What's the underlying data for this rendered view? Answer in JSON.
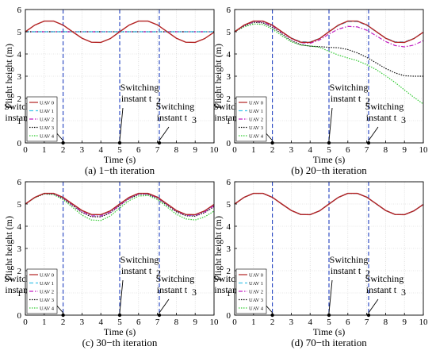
{
  "figure": {
    "colors": {
      "UAV 0": "#b22222",
      "UAV 1": "#3ec3e8",
      "UAV 2": "#c01ec0",
      "UAV 3": "#111111",
      "UAV 4": "#33cc33",
      "switch_line": "#1f3fbf"
    }
  },
  "chart_data": [
    {
      "type": "line",
      "caption": "(a) 1−th iteration",
      "xlabel": "Time (s)",
      "ylabel": "Flight height (m)",
      "xlim": [
        0,
        10
      ],
      "ylim": [
        0,
        6
      ],
      "xticks": [
        "0",
        "1",
        "2",
        "3",
        "4",
        "5",
        "6",
        "7",
        "8",
        "9",
        "10"
      ],
      "yticks": [
        "0",
        "1",
        "2",
        "3",
        "4",
        "5",
        "6"
      ],
      "grid": true,
      "legend": "bottom-left",
      "switch_times": [
        2,
        5,
        7.1
      ],
      "annotations": [
        {
          "line1": "Switching",
          "line2": "instant t",
          "sub": "1",
          "target_x": 2
        },
        {
          "line1": "Switching",
          "line2": "instant t",
          "sub": "2",
          "target_x": 5
        },
        {
          "line1": "Switching",
          "line2": "instant t",
          "sub": "3",
          "target_x": 7.1
        }
      ],
      "x": [
        0,
        0.5,
        1,
        1.5,
        2,
        2.5,
        3,
        3.5,
        4,
        4.5,
        5,
        5.5,
        6,
        6.5,
        7,
        7.5,
        8,
        8.5,
        9,
        9.5,
        10
      ],
      "series": [
        {
          "name": "UAV 0",
          "values": [
            5.0,
            5.3,
            5.48,
            5.48,
            5.3,
            5.0,
            4.71,
            4.53,
            4.52,
            4.69,
            5.0,
            5.3,
            5.48,
            5.48,
            5.31,
            5.01,
            4.71,
            4.53,
            4.52,
            4.69,
            4.98
          ]
        },
        {
          "name": "UAV 1",
          "values": [
            5.0,
            5.0,
            5.0,
            5.0,
            5.0,
            5.0,
            5.0,
            5.0,
            5.0,
            5.0,
            5.0,
            5.0,
            5.0,
            5.0,
            5.0,
            5.0,
            5.0,
            5.0,
            5.0,
            5.0,
            5.0
          ]
        },
        {
          "name": "UAV 2",
          "values": [
            5.0,
            5.0,
            5.0,
            5.0,
            5.0,
            5.0,
            5.0,
            5.0,
            5.0,
            5.0,
            5.0,
            5.0,
            5.0,
            5.0,
            5.0,
            5.0,
            5.0,
            5.0,
            5.0,
            5.0,
            5.0
          ]
        },
        {
          "name": "UAV 3",
          "values": [
            5.0,
            5.0,
            5.0,
            5.0,
            5.0,
            5.0,
            5.0,
            5.0,
            5.0,
            5.0,
            5.0,
            5.0,
            5.0,
            5.0,
            5.0,
            5.0,
            5.0,
            5.0,
            5.0,
            5.0,
            5.0
          ]
        },
        {
          "name": "UAV 4",
          "values": [
            5.0,
            5.0,
            5.0,
            5.0,
            5.0,
            5.0,
            5.0,
            5.0,
            5.0,
            5.0,
            5.0,
            5.0,
            5.0,
            5.0,
            5.0,
            5.0,
            5.0,
            5.0,
            5.0,
            5.0,
            5.0
          ]
        }
      ]
    },
    {
      "type": "line",
      "caption": "(b) 20−th iteration",
      "xlabel": "Time (s)",
      "ylabel": "Flight height (m)",
      "xlim": [
        0,
        10
      ],
      "ylim": [
        0,
        6
      ],
      "xticks": [
        "0",
        "1",
        "2",
        "3",
        "4",
        "5",
        "6",
        "7",
        "8",
        "9",
        "10"
      ],
      "yticks": [
        "0",
        "1",
        "2",
        "3",
        "4",
        "5",
        "6"
      ],
      "grid": true,
      "legend": "bottom-left",
      "switch_times": [
        2,
        5,
        7.1
      ],
      "annotations": [
        {
          "line1": "Switching",
          "line2": "instant t",
          "sub": "1",
          "target_x": 2
        },
        {
          "line1": "Switching",
          "line2": "instant t",
          "sub": "2",
          "target_x": 5
        },
        {
          "line1": "Switching",
          "line2": "instant t",
          "sub": "3",
          "target_x": 7.1
        }
      ],
      "x": [
        0,
        0.5,
        1,
        1.5,
        2,
        2.5,
        3,
        3.5,
        4,
        4.5,
        5,
        5.5,
        6,
        6.5,
        7,
        7.5,
        8,
        8.5,
        9,
        9.5,
        10
      ],
      "series": [
        {
          "name": "UAV 0",
          "values": [
            5.0,
            5.3,
            5.48,
            5.48,
            5.3,
            5.0,
            4.71,
            4.53,
            4.52,
            4.69,
            5.0,
            5.3,
            5.48,
            5.48,
            5.31,
            5.01,
            4.71,
            4.53,
            4.52,
            4.69,
            4.98
          ]
        },
        {
          "name": "UAV 1",
          "values": [
            5.0,
            5.29,
            5.47,
            5.47,
            5.29,
            5.0,
            4.72,
            4.55,
            4.54,
            4.7,
            5.0,
            5.28,
            5.46,
            5.46,
            5.29,
            5.0,
            4.72,
            4.55,
            4.54,
            4.7,
            4.98
          ]
        },
        {
          "name": "UAV 2",
          "values": [
            5.0,
            5.28,
            5.45,
            5.44,
            5.26,
            4.97,
            4.69,
            4.51,
            4.48,
            4.63,
            4.9,
            5.12,
            5.24,
            5.22,
            5.07,
            4.82,
            4.56,
            4.38,
            4.32,
            4.4,
            4.6
          ]
        },
        {
          "name": "UAV 3",
          "values": [
            5.0,
            5.26,
            5.42,
            5.4,
            5.2,
            4.9,
            4.6,
            4.42,
            4.35,
            4.33,
            4.3,
            4.28,
            4.2,
            4.05,
            3.85,
            3.6,
            3.35,
            3.15,
            3.02,
            3.0,
            3.0
          ]
        },
        {
          "name": "UAV 4",
          "values": [
            5.0,
            5.22,
            5.35,
            5.33,
            5.12,
            4.82,
            4.55,
            4.4,
            4.36,
            4.3,
            4.12,
            3.95,
            3.82,
            3.7,
            3.52,
            3.3,
            3.02,
            2.72,
            2.38,
            2.05,
            1.75
          ]
        }
      ]
    },
    {
      "type": "line",
      "caption": "(c) 30−th iteration",
      "xlabel": "Time (s)",
      "ylabel": "Flight height (m)",
      "xlim": [
        0,
        10
      ],
      "ylim": [
        0,
        6
      ],
      "xticks": [
        "0",
        "1",
        "2",
        "3",
        "4",
        "5",
        "6",
        "7",
        "8",
        "9",
        "10"
      ],
      "yticks": [
        "0",
        "1",
        "2",
        "3",
        "4",
        "5",
        "6"
      ],
      "grid": true,
      "legend": "bottom-left",
      "switch_times": [
        2,
        5,
        7.1
      ],
      "annotations": [
        {
          "line1": "Switching",
          "line2": "instant t",
          "sub": "1",
          "target_x": 2
        },
        {
          "line1": "Switching",
          "line2": "instant t",
          "sub": "2",
          "target_x": 5
        },
        {
          "line1": "Switching",
          "line2": "instant t",
          "sub": "3",
          "target_x": 7.1
        }
      ],
      "x": [
        0,
        0.5,
        1,
        1.5,
        2,
        2.5,
        3,
        3.5,
        4,
        4.5,
        5,
        5.5,
        6,
        6.5,
        7,
        7.5,
        8,
        8.5,
        9,
        9.5,
        10
      ],
      "series": [
        {
          "name": "UAV 0",
          "values": [
            5.0,
            5.3,
            5.48,
            5.48,
            5.3,
            5.0,
            4.71,
            4.53,
            4.52,
            4.69,
            5.0,
            5.3,
            5.48,
            5.48,
            5.31,
            5.01,
            4.71,
            4.53,
            4.52,
            4.69,
            4.98
          ]
        },
        {
          "name": "UAV 1",
          "values": [
            5.0,
            5.3,
            5.48,
            5.47,
            5.29,
            4.99,
            4.7,
            4.52,
            4.51,
            4.68,
            4.99,
            5.29,
            5.47,
            5.47,
            5.3,
            5.0,
            4.7,
            4.52,
            4.51,
            4.68,
            4.97
          ]
        },
        {
          "name": "UAV 2",
          "values": [
            5.0,
            5.3,
            5.47,
            5.46,
            5.27,
            4.96,
            4.66,
            4.47,
            4.46,
            4.63,
            4.95,
            5.26,
            5.45,
            5.45,
            5.28,
            4.98,
            4.68,
            4.5,
            4.48,
            4.64,
            4.92
          ]
        },
        {
          "name": "UAV 3",
          "values": [
            5.0,
            5.29,
            5.46,
            5.45,
            5.25,
            4.93,
            4.62,
            4.43,
            4.42,
            4.6,
            4.93,
            5.24,
            5.43,
            5.43,
            5.26,
            4.95,
            4.65,
            4.47,
            4.45,
            4.61,
            4.88
          ]
        },
        {
          "name": "UAV 4",
          "values": [
            5.0,
            5.28,
            5.45,
            5.42,
            5.2,
            4.85,
            4.5,
            4.28,
            4.26,
            4.46,
            4.82,
            5.15,
            5.36,
            5.38,
            5.2,
            4.87,
            4.54,
            4.33,
            4.28,
            4.42,
            4.68
          ]
        }
      ]
    },
    {
      "type": "line",
      "caption": "(d) 70−th iteration",
      "xlabel": "Time (s)",
      "ylabel": "Flight height (m)",
      "xlim": [
        0,
        10
      ],
      "ylim": [
        0,
        6
      ],
      "xticks": [
        "0",
        "1",
        "2",
        "3",
        "4",
        "5",
        "6",
        "7",
        "8",
        "9",
        "10"
      ],
      "yticks": [
        "0",
        "1",
        "2",
        "3",
        "4",
        "5",
        "6"
      ],
      "grid": true,
      "legend": "bottom-left",
      "switch_times": [
        2,
        5,
        7.1
      ],
      "annotations": [
        {
          "line1": "Switching",
          "line2": "instant t",
          "sub": "1",
          "target_x": 2
        },
        {
          "line1": "Switching",
          "line2": "instant t",
          "sub": "2",
          "target_x": 5
        },
        {
          "line1": "Switching",
          "line2": "instant t",
          "sub": "3",
          "target_x": 7.1
        }
      ],
      "x": [
        0,
        0.5,
        1,
        1.5,
        2,
        2.5,
        3,
        3.5,
        4,
        4.5,
        5,
        5.5,
        6,
        6.5,
        7,
        7.5,
        8,
        8.5,
        9,
        9.5,
        10
      ],
      "series": [
        {
          "name": "UAV 0",
          "values": [
            5.0,
            5.3,
            5.48,
            5.48,
            5.3,
            5.0,
            4.71,
            4.53,
            4.52,
            4.69,
            5.0,
            5.3,
            5.48,
            5.48,
            5.31,
            5.01,
            4.71,
            4.53,
            4.52,
            4.69,
            4.98
          ]
        },
        {
          "name": "UAV 1",
          "values": [
            5.0,
            5.3,
            5.48,
            5.48,
            5.3,
            5.0,
            4.71,
            4.53,
            4.52,
            4.69,
            5.0,
            5.3,
            5.48,
            5.48,
            5.31,
            5.01,
            4.71,
            4.53,
            4.52,
            4.69,
            4.98
          ]
        },
        {
          "name": "UAV 2",
          "values": [
            5.0,
            5.3,
            5.48,
            5.48,
            5.3,
            5.0,
            4.71,
            4.53,
            4.52,
            4.69,
            5.0,
            5.3,
            5.48,
            5.48,
            5.31,
            5.01,
            4.71,
            4.53,
            4.52,
            4.69,
            4.98
          ]
        },
        {
          "name": "UAV 3",
          "values": [
            5.0,
            5.3,
            5.48,
            5.48,
            5.3,
            5.0,
            4.71,
            4.53,
            4.52,
            4.69,
            5.0,
            5.3,
            5.48,
            5.48,
            5.31,
            5.01,
            4.71,
            4.53,
            4.52,
            4.69,
            4.98
          ]
        },
        {
          "name": "UAV 4",
          "values": [
            5.0,
            5.3,
            5.48,
            5.48,
            5.3,
            5.0,
            4.71,
            4.53,
            4.52,
            4.69,
            5.0,
            5.3,
            5.48,
            5.48,
            5.31,
            5.01,
            4.71,
            4.53,
            4.52,
            4.69,
            4.98
          ]
        }
      ]
    }
  ]
}
